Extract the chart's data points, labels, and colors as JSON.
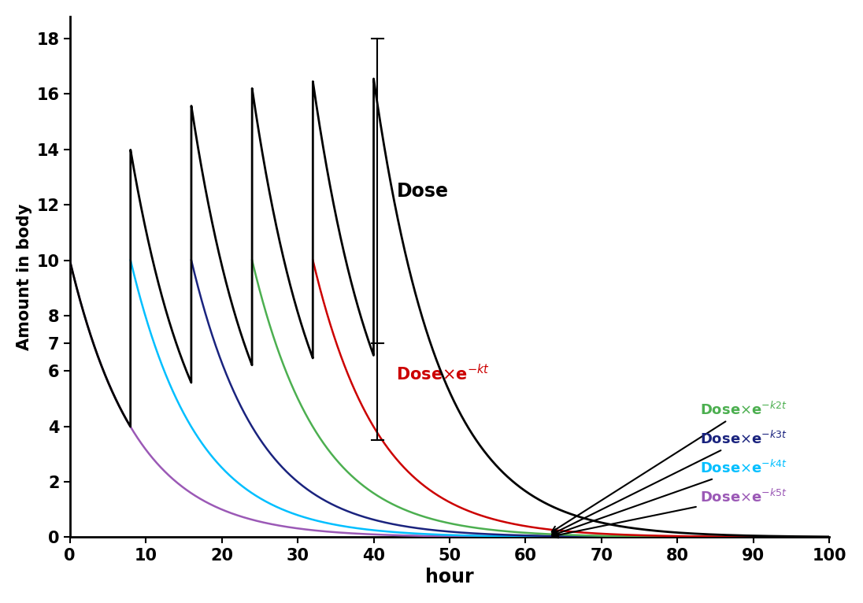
{
  "xlabel": "hour",
  "ylabel": "Amount in body",
  "dose": 10,
  "dose_times": [
    0,
    8,
    16,
    24,
    32,
    40
  ],
  "k": 0.115,
  "yticks": [
    0,
    2,
    4,
    6,
    7,
    8,
    10,
    12,
    14,
    16,
    18
  ],
  "ylim": [
    0,
    18.8
  ],
  "xlim": [
    0,
    100
  ],
  "xticks": [
    0,
    10,
    20,
    30,
    40,
    50,
    60,
    70,
    80,
    90,
    100
  ],
  "background_color": "#ffffff",
  "ind_colors": [
    "#9B59B6",
    "#00BFFF",
    "#1A237E",
    "#4CAF50",
    "#CC0000"
  ],
  "ind_dose_times": [
    8,
    16,
    24,
    32,
    40
  ],
  "label_colors": {
    "green": "#4CAF50",
    "blue": "#1A237E",
    "cyan": "#00BFFF",
    "purple": "#9B59B6"
  }
}
